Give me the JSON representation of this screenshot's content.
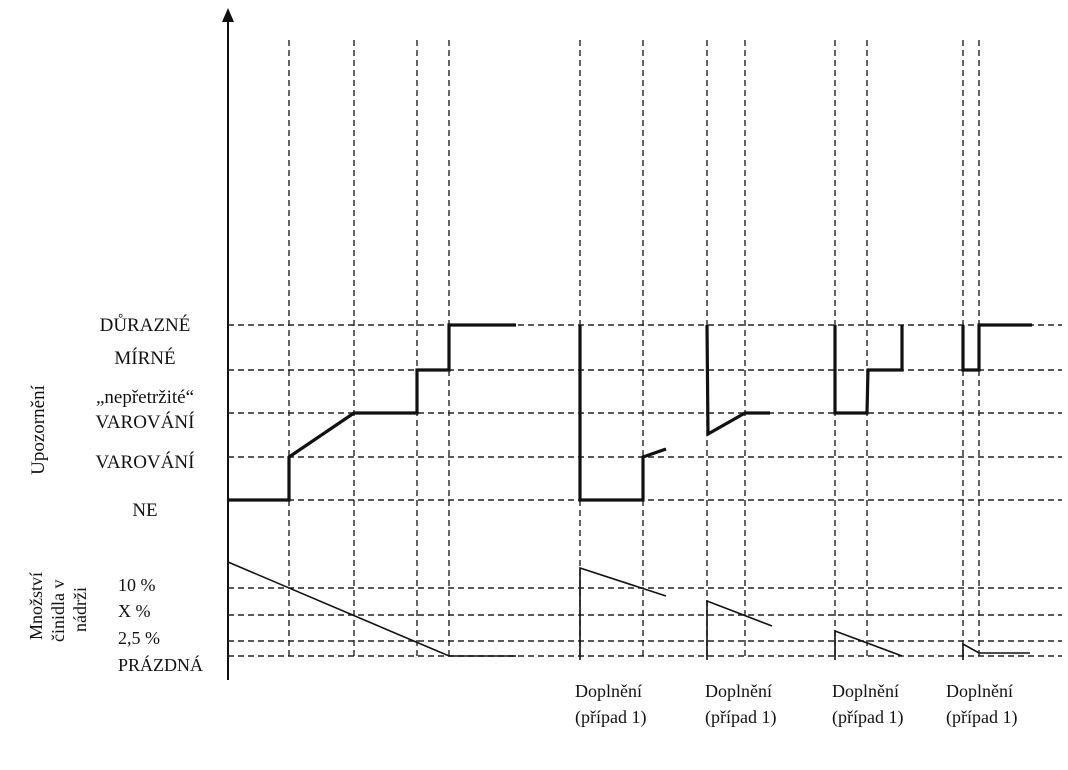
{
  "y_axis_title": "Upozornění",
  "levels": {
    "durazne": "DŮRAZNÉ",
    "mirne": "MÍRNÉ",
    "neprerusovane_line1": "„nepřetržité“",
    "neprerusovane_line2": "VAROVÁNÍ",
    "varovani": "VAROVÁNÍ",
    "ne": "NE"
  },
  "tank_title_lines": [
    "Množství",
    "činidla v",
    "nádrži"
  ],
  "tank_levels": {
    "p10": "10 %",
    "px": "X %",
    "p25": "2,5 %",
    "empty": "PRÁZDNÁ"
  },
  "refill_labels": [
    {
      "line1": "Doplnění",
      "line2": "(případ 1)"
    },
    {
      "line1": "Doplnění",
      "line2": "(případ 1)"
    },
    {
      "line1": "Doplnění",
      "line2": "(případ 1)"
    },
    {
      "line1": "Doplnění",
      "line2": "(případ 1)"
    }
  ]
}
